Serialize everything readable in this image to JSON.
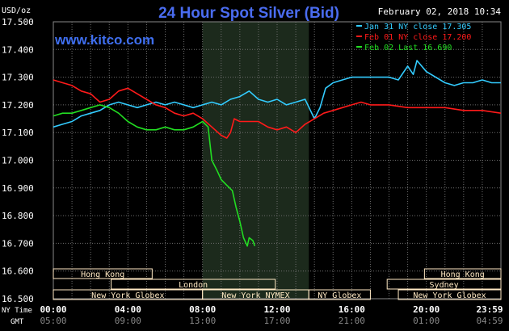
{
  "header": {
    "title": "24 Hour Spot Silver (Bid)",
    "y_unit": "USD/oz",
    "date_time": "February 02, 2018 10:34",
    "watermark": "www.kitco.com"
  },
  "colors": {
    "background": "#000000",
    "grid": "#6e6e6e",
    "title": "#4a6cf0",
    "watermark": "#3f6ff0",
    "jan31": "#33ccff",
    "feb01": "#ff1a1a",
    "feb02": "#22dd22",
    "session_shade": "#1c2a1c",
    "session_box": "#ffe9c4",
    "session_border": "#b04a00"
  },
  "bottom": {
    "ny_time_label": "NY Time",
    "gmt_label": "GMT",
    "ny_times": [
      "00:00",
      "04:00",
      "08:00",
      "12:00",
      "16:00",
      "20:00",
      "23:59"
    ],
    "gmt_times": [
      "05:00",
      "09:00",
      "13:00",
      "17:00",
      "21:00",
      "01:00",
      "04:59"
    ]
  },
  "chart_data": {
    "type": "line",
    "title": "24 Hour Spot Silver (Bid)",
    "ylabel": "USD/oz",
    "xlabel": "NY Time",
    "xlim": [
      0,
      24
    ],
    "ylim": [
      16.5,
      17.5
    ],
    "yticks": [
      "17.500",
      "17.400",
      "17.300",
      "17.200",
      "17.100",
      "17.000",
      "16.900",
      "16.800",
      "16.700",
      "16.600",
      "16.500"
    ],
    "grid": true,
    "legend_position": "top-right",
    "series": [
      {
        "name": "Jan 31 NY close 17.305",
        "color_key": "jan31",
        "points": [
          [
            0,
            17.12
          ],
          [
            0.5,
            17.13
          ],
          [
            1,
            17.14
          ],
          [
            1.5,
            17.16
          ],
          [
            2,
            17.17
          ],
          [
            2.5,
            17.18
          ],
          [
            3,
            17.2
          ],
          [
            3.5,
            17.21
          ],
          [
            4,
            17.2
          ],
          [
            4.5,
            17.19
          ],
          [
            5,
            17.2
          ],
          [
            5.5,
            17.21
          ],
          [
            6,
            17.2
          ],
          [
            6.5,
            17.21
          ],
          [
            7,
            17.2
          ],
          [
            7.5,
            17.19
          ],
          [
            8,
            17.2
          ],
          [
            8.5,
            17.21
          ],
          [
            9,
            17.2
          ],
          [
            9.5,
            17.22
          ],
          [
            10,
            17.23
          ],
          [
            10.5,
            17.25
          ],
          [
            11,
            17.22
          ],
          [
            11.5,
            17.21
          ],
          [
            12,
            17.22
          ],
          [
            12.5,
            17.2
          ],
          [
            13,
            17.21
          ],
          [
            13.5,
            17.22
          ],
          [
            14,
            17.15
          ],
          [
            14.3,
            17.19
          ],
          [
            14.6,
            17.26
          ],
          [
            15,
            17.28
          ],
          [
            15.5,
            17.29
          ],
          [
            16,
            17.3
          ],
          [
            17,
            17.3
          ],
          [
            18,
            17.3
          ],
          [
            18.5,
            17.29
          ],
          [
            19,
            17.34
          ],
          [
            19.3,
            17.31
          ],
          [
            19.5,
            17.36
          ],
          [
            20,
            17.32
          ],
          [
            20.5,
            17.3
          ],
          [
            21,
            17.28
          ],
          [
            21.5,
            17.27
          ],
          [
            22,
            17.28
          ],
          [
            22.5,
            17.28
          ],
          [
            23,
            17.29
          ],
          [
            23.5,
            17.28
          ],
          [
            24,
            17.28
          ]
        ]
      },
      {
        "name": "Feb 01 NY close 17.200",
        "color_key": "feb01",
        "points": [
          [
            0,
            17.29
          ],
          [
            0.5,
            17.28
          ],
          [
            1,
            17.27
          ],
          [
            1.5,
            17.25
          ],
          [
            2,
            17.24
          ],
          [
            2.5,
            17.21
          ],
          [
            3,
            17.22
          ],
          [
            3.5,
            17.25
          ],
          [
            4,
            17.26
          ],
          [
            4.5,
            17.24
          ],
          [
            5,
            17.22
          ],
          [
            5.5,
            17.2
          ],
          [
            6,
            17.19
          ],
          [
            6.5,
            17.17
          ],
          [
            7,
            17.16
          ],
          [
            7.5,
            17.17
          ],
          [
            8,
            17.15
          ],
          [
            8.5,
            17.12
          ],
          [
            9,
            17.09
          ],
          [
            9.3,
            17.08
          ],
          [
            9.5,
            17.1
          ],
          [
            9.7,
            17.15
          ],
          [
            10,
            17.14
          ],
          [
            10.5,
            17.14
          ],
          [
            11,
            17.14
          ],
          [
            11.5,
            17.12
          ],
          [
            12,
            17.11
          ],
          [
            12.5,
            17.12
          ],
          [
            13,
            17.1
          ],
          [
            13.5,
            17.13
          ],
          [
            14,
            17.15
          ],
          [
            14.5,
            17.17
          ],
          [
            15,
            17.18
          ],
          [
            15.5,
            17.19
          ],
          [
            16,
            17.2
          ],
          [
            16.5,
            17.21
          ],
          [
            17,
            17.2
          ],
          [
            18,
            17.2
          ],
          [
            19,
            17.19
          ],
          [
            20,
            17.19
          ],
          [
            21,
            17.19
          ],
          [
            22,
            17.18
          ],
          [
            23,
            17.18
          ],
          [
            24,
            17.17
          ]
        ]
      },
      {
        "name": "Feb 02 Last 16.690",
        "color_key": "feb02",
        "points": [
          [
            0,
            17.16
          ],
          [
            0.5,
            17.17
          ],
          [
            1,
            17.17
          ],
          [
            1.5,
            17.18
          ],
          [
            2,
            17.19
          ],
          [
            2.5,
            17.2
          ],
          [
            3,
            17.19
          ],
          [
            3.5,
            17.17
          ],
          [
            4,
            17.14
          ],
          [
            4.5,
            17.12
          ],
          [
            5,
            17.11
          ],
          [
            5.5,
            17.11
          ],
          [
            6,
            17.12
          ],
          [
            6.5,
            17.11
          ],
          [
            7,
            17.11
          ],
          [
            7.5,
            17.12
          ],
          [
            8,
            17.14
          ],
          [
            8.3,
            17.12
          ],
          [
            8.5,
            17.0
          ],
          [
            8.8,
            16.96
          ],
          [
            9,
            16.93
          ],
          [
            9.3,
            16.91
          ],
          [
            9.6,
            16.89
          ],
          [
            9.8,
            16.83
          ],
          [
            10,
            16.78
          ],
          [
            10.2,
            16.72
          ],
          [
            10.4,
            16.69
          ],
          [
            10.5,
            16.72
          ],
          [
            10.7,
            16.71
          ],
          [
            10.8,
            16.69
          ]
        ]
      }
    ]
  },
  "sessions": [
    {
      "label": "Hong Kong",
      "start": 0,
      "end": 5.3,
      "row": 0
    },
    {
      "label": "Hong Kong",
      "start": 19.9,
      "end": 24,
      "row": 0
    },
    {
      "label": "London",
      "start": 3.1,
      "end": 11.9,
      "row": 1
    },
    {
      "label": "Sydney",
      "start": 17.9,
      "end": 24,
      "row": 1
    },
    {
      "label": "New York Globex",
      "start": 0,
      "end": 8.0,
      "row": 2
    },
    {
      "label": "New York NYMEX",
      "start": 8.0,
      "end": 13.7,
      "row": 2
    },
    {
      "label": "NY Globex",
      "start": 13.7,
      "end": 17.0,
      "row": 2
    },
    {
      "label": "New York Globex",
      "start": 18.5,
      "end": 24,
      "row": 2
    }
  ],
  "shaded_region": {
    "start": 8.0,
    "end": 13.7
  }
}
